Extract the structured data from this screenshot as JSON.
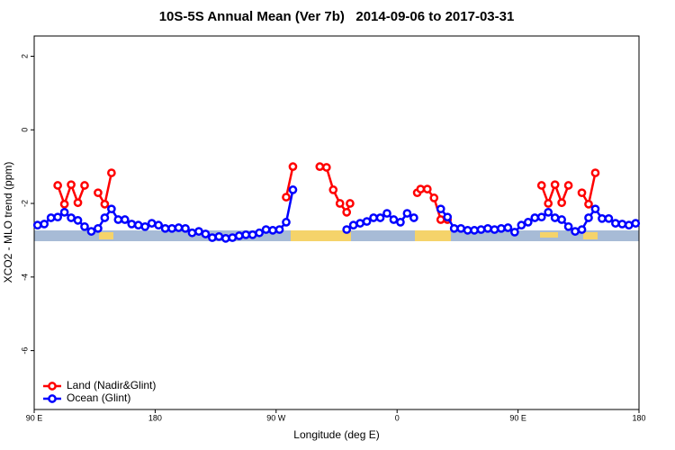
{
  "chart_data": {
    "type": "line",
    "title": "10S-5S Annual Mean (Ver 7b)   2014-09-06 to 2017-03-31",
    "x_label": "Longitude (deg E)",
    "y_label": "XCO2 - MLO trend (ppm)",
    "xlim": [
      90,
      540
    ],
    "ylim": [
      -7.6,
      2.55
    ],
    "xticks": [
      {
        "value": 90,
        "label": "90 E"
      },
      {
        "value": 180,
        "label": "180"
      },
      {
        "value": 270,
        "label": "90 W"
      },
      {
        "value": 360,
        "label": "0"
      },
      {
        "value": 450,
        "label": "90 E"
      },
      {
        "value": 540,
        "label": "180"
      }
    ],
    "yticks": [
      2,
      0,
      -2,
      -4,
      -6
    ],
    "legend": "bottom-left",
    "series": [
      {
        "name": "Land (Nadir&Glint)",
        "color": "#ff0000",
        "x": [
          107.5,
          112.5,
          117.5,
          122.5,
          127.5,
          null,
          137.5,
          142.5,
          147.5,
          null,
          277.5,
          282.5,
          null,
          302.5,
          307.5,
          312.5,
          317.5,
          322.5,
          325,
          null,
          375,
          377.5,
          382.5,
          387.5,
          392.5,
          397.5,
          null,
          467.5,
          472.5,
          477.5,
          482.5,
          487.5,
          null,
          497.5,
          502.5,
          507.5
        ],
        "values": [
          -1.51,
          -2.02,
          -1.49,
          -1.98,
          -1.51,
          null,
          -1.71,
          -2.02,
          -1.17,
          null,
          -1.83,
          -1.0,
          null,
          -1.0,
          -1.02,
          -1.63,
          -2.0,
          -2.24,
          -2.0,
          null,
          -1.71,
          -1.61,
          -1.61,
          -1.85,
          -2.44,
          -2.44,
          null,
          -1.51,
          -2.0,
          -1.49,
          -1.98,
          -1.51,
          null,
          -1.71,
          -2.02,
          -1.17
        ]
      },
      {
        "name": "Ocean (Glint)",
        "color": "#0000ff",
        "x": [
          92.5,
          97.5,
          102.5,
          107.5,
          112.5,
          117.5,
          122.5,
          127.5,
          132.5,
          137.5,
          142.5,
          147.5,
          152.5,
          157.5,
          162.5,
          167.5,
          172.5,
          177.5,
          182.5,
          187.5,
          192.5,
          197.5,
          202.5,
          207.5,
          212.5,
          217.5,
          222.5,
          227.5,
          232.5,
          237.5,
          242.5,
          247.5,
          252.5,
          257.5,
          262.5,
          267.5,
          272.5,
          277.5,
          282.5,
          null,
          322.5,
          327.5,
          332.5,
          337.5,
          342.5,
          347.5,
          352.5,
          357.5,
          362.5,
          367.5,
          372.5,
          null,
          392.5,
          397.5,
          402.5,
          407.5,
          412.5,
          417.5,
          422.5,
          427.5,
          432.5,
          437.5,
          442.5,
          447.5,
          452.5,
          457.5,
          462.5,
          467.5,
          472.5,
          477.5,
          482.5,
          487.5,
          492.5,
          497.5,
          502.5,
          507.5,
          512.5,
          517.5,
          522.5,
          527.5,
          532.5,
          537.5
        ],
        "values": [
          -2.59,
          -2.56,
          -2.39,
          -2.37,
          -2.24,
          -2.39,
          -2.46,
          -2.63,
          -2.76,
          -2.68,
          -2.39,
          -2.15,
          -2.44,
          -2.44,
          -2.56,
          -2.59,
          -2.63,
          -2.54,
          -2.59,
          -2.68,
          -2.68,
          -2.66,
          -2.68,
          -2.8,
          -2.76,
          -2.83,
          -2.93,
          -2.9,
          -2.95,
          -2.93,
          -2.88,
          -2.85,
          -2.85,
          -2.8,
          -2.71,
          -2.73,
          -2.71,
          -2.51,
          -1.63,
          null,
          -2.71,
          -2.59,
          -2.54,
          -2.49,
          -2.39,
          -2.39,
          -2.27,
          -2.44,
          -2.51,
          -2.27,
          -2.39,
          null,
          -2.15,
          -2.37,
          -2.68,
          -2.68,
          -2.73,
          -2.73,
          -2.71,
          -2.68,
          -2.71,
          -2.68,
          -2.66,
          -2.78,
          -2.59,
          -2.51,
          -2.39,
          -2.37,
          -2.24,
          -2.39,
          -2.44,
          -2.63,
          -2.76,
          -2.71,
          -2.39,
          -2.15,
          -2.41,
          -2.41,
          -2.54,
          -2.56,
          -2.59,
          -2.54
        ]
      }
    ]
  }
}
